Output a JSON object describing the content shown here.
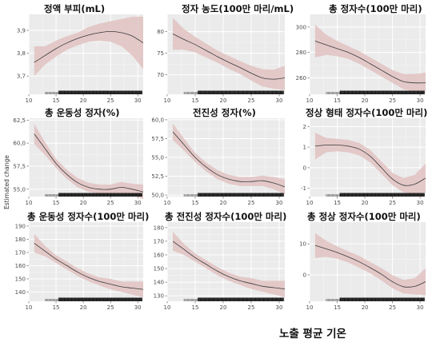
{
  "figure": {
    "xlabel": "노출 평균 기온",
    "ylabel": "Estimated change"
  },
  "chart_data": [
    {
      "type": "line",
      "title": "정액 부피(mL)",
      "xlim": [
        10,
        31
      ],
      "ylim": [
        3.62,
        3.97
      ],
      "xticks": [
        10,
        15,
        20,
        25,
        30
      ],
      "yticks": [
        3.7,
        3.8,
        3.9
      ],
      "ytick_labels": [
        "3,7",
        "3,8",
        "3,9"
      ],
      "series": [
        {
          "x": [
            11,
            13,
            15,
            17,
            19,
            21,
            23,
            25,
            27,
            29,
            31
          ],
          "y": [
            3.76,
            3.79,
            3.82,
            3.845,
            3.865,
            3.88,
            3.89,
            3.895,
            3.89,
            3.875,
            3.845
          ],
          "lower": [
            3.7,
            3.75,
            3.785,
            3.815,
            3.835,
            3.85,
            3.855,
            3.85,
            3.83,
            3.79,
            3.73
          ],
          "upper": [
            3.83,
            3.83,
            3.855,
            3.875,
            3.89,
            3.915,
            3.93,
            3.94,
            3.95,
            3.96,
            3.96
          ]
        }
      ]
    },
    {
      "type": "line",
      "title": "정자 농도(100만 마리/mL)",
      "xlim": [
        10,
        31
      ],
      "ylim": [
        65.5,
        84
      ],
      "xticks": [
        10,
        15,
        20,
        25,
        30
      ],
      "yticks": [
        70,
        75,
        80
      ],
      "ytick_labels": [
        "70",
        "75",
        "80"
      ],
      "series": [
        {
          "x": [
            11,
            13,
            15,
            17,
            19,
            21,
            23,
            25,
            27,
            29,
            31
          ],
          "y": [
            79.5,
            78.2,
            77.0,
            75.6,
            74.2,
            72.9,
            71.7,
            70.4,
            69.3,
            69.0,
            69.3
          ],
          "lower": [
            75.8,
            75.8,
            75.2,
            74.0,
            72.8,
            71.4,
            70.2,
            68.7,
            67.3,
            66.8,
            66.5
          ],
          "upper": [
            83.2,
            80.6,
            78.8,
            77.2,
            75.6,
            74.4,
            73.2,
            72.1,
            71.3,
            71.2,
            72.1
          ]
        }
      ]
    },
    {
      "type": "line",
      "title": "총 정자수(100만 마리)",
      "xlim": [
        10,
        31
      ],
      "ylim": [
        247,
        310
      ],
      "xticks": [
        10,
        15,
        20,
        25,
        30
      ],
      "yticks": [
        260,
        280,
        300
      ],
      "ytick_labels": [
        "260",
        "280",
        "300"
      ],
      "series": [
        {
          "x": [
            11,
            13,
            15,
            17,
            19,
            21,
            23,
            25,
            27,
            29,
            31
          ],
          "y": [
            289,
            286,
            283,
            280,
            276,
            271,
            266,
            261,
            257,
            256,
            256
          ],
          "lower": [
            276,
            278,
            277,
            275,
            271,
            266,
            261,
            256,
            251,
            249,
            249
          ],
          "upper": [
            302,
            294,
            289,
            285,
            281,
            276,
            271,
            266,
            263,
            263,
            264
          ]
        }
      ]
    },
    {
      "type": "line",
      "title": "총 운동성 정자(%)",
      "xlim": [
        10,
        31
      ],
      "ylim": [
        54.2,
        62.7
      ],
      "xticks": [
        10,
        15,
        20,
        25,
        30
      ],
      "yticks": [
        55.0,
        57.5,
        60.0,
        62.5
      ],
      "ytick_labels": [
        "55,0",
        "57,5",
        "60,0",
        "62,5"
      ],
      "series": [
        {
          "x": [
            11,
            13,
            15,
            17,
            19,
            21,
            23,
            25,
            27,
            29,
            31
          ],
          "y": [
            61.0,
            59.4,
            57.8,
            56.6,
            55.7,
            55.2,
            55.0,
            55.0,
            55.2,
            55.0,
            54.7
          ],
          "lower": [
            59.9,
            58.7,
            57.3,
            56.1,
            55.2,
            54.7,
            54.5,
            54.5,
            54.6,
            54.4,
            53.9
          ],
          "upper": [
            62.1,
            60.1,
            58.3,
            57.1,
            56.2,
            55.7,
            55.5,
            55.5,
            55.8,
            55.6,
            55.5
          ]
        }
      ]
    },
    {
      "type": "line",
      "title": "전진성 정자(%)",
      "xlim": [
        10,
        31
      ],
      "ylim": [
        49.8,
        60.2
      ],
      "xticks": [
        10,
        15,
        20,
        25,
        30
      ],
      "yticks": [
        50.0,
        52.5,
        55.0,
        57.5,
        60.0
      ],
      "ytick_labels": [
        "50,0",
        "52,5",
        "55,0",
        "57,5",
        "60,0"
      ],
      "series": [
        {
          "x": [
            11,
            13,
            15,
            17,
            19,
            21,
            23,
            25,
            27,
            29,
            31
          ],
          "y": [
            58.4,
            56.7,
            55.0,
            53.7,
            52.7,
            52.1,
            51.8,
            51.8,
            51.9,
            51.6,
            51.1
          ],
          "lower": [
            57.3,
            55.9,
            54.4,
            53.1,
            52.1,
            51.5,
            51.2,
            51.2,
            51.2,
            50.8,
            50.1
          ],
          "upper": [
            59.5,
            57.5,
            55.6,
            54.3,
            53.3,
            52.7,
            52.4,
            52.4,
            52.6,
            52.4,
            52.1
          ]
        }
      ]
    },
    {
      "type": "line",
      "title": "정상 형태 정자수(100만 마리)",
      "xlim": [
        10,
        31
      ],
      "ylim": [
        -1.4,
        2.4
      ],
      "xticks": [
        10,
        15,
        20,
        25,
        30
      ],
      "yticks": [
        -1,
        0,
        1,
        2
      ],
      "ytick_labels": [
        "-1",
        "0",
        "1",
        "2"
      ],
      "series": [
        {
          "x": [
            11,
            13,
            15,
            17,
            19,
            21,
            23,
            25,
            27,
            29,
            31
          ],
          "y": [
            1.05,
            1.1,
            1.1,
            1.05,
            0.9,
            0.55,
            0.0,
            -0.55,
            -0.85,
            -0.8,
            -0.5
          ],
          "lower": [
            0.4,
            0.75,
            0.8,
            0.75,
            0.6,
            0.25,
            -0.3,
            -0.85,
            -1.2,
            -1.25,
            -1.2
          ],
          "upper": [
            1.7,
            1.45,
            1.4,
            1.35,
            1.2,
            0.85,
            0.3,
            -0.25,
            -0.5,
            -0.35,
            0.2
          ]
        }
      ]
    },
    {
      "type": "line",
      "title": "총 운동성 정자수(100만 마리)",
      "xlim": [
        10,
        31
      ],
      "ylim": [
        133,
        193
      ],
      "xticks": [
        10,
        15,
        20,
        25,
        30
      ],
      "yticks": [
        140,
        150,
        160,
        170,
        180,
        190
      ],
      "ytick_labels": [
        "140",
        "150",
        "160",
        "170",
        "180",
        "190"
      ],
      "series": [
        {
          "x": [
            11,
            13,
            15,
            17,
            19,
            21,
            23,
            25,
            27,
            29,
            31
          ],
          "y": [
            177,
            171,
            165,
            160,
            155,
            151,
            148,
            146,
            144,
            143,
            142
          ],
          "lower": [
            170,
            167,
            162,
            157,
            152,
            148,
            145,
            142,
            140,
            138,
            136
          ],
          "upper": [
            184,
            175,
            168,
            163,
            158,
            154,
            151,
            150,
            148,
            148,
            148
          ]
        }
      ]
    },
    {
      "type": "line",
      "title": "총 전진성 정자수(100만 마리)",
      "xlim": [
        10,
        31
      ],
      "ylim": [
        126,
        184
      ],
      "xticks": [
        10,
        15,
        20,
        25,
        30
      ],
      "yticks": [
        130,
        140,
        150,
        160,
        170,
        180
      ],
      "ytick_labels": [
        "130",
        "140",
        "150",
        "160",
        "170",
        "180"
      ],
      "series": [
        {
          "x": [
            11,
            13,
            15,
            17,
            19,
            21,
            23,
            25,
            27,
            29,
            31
          ],
          "y": [
            170,
            164,
            158,
            153,
            148,
            144,
            141,
            139,
            137,
            136,
            135
          ],
          "lower": [
            163,
            160,
            155,
            150,
            145,
            141,
            138,
            135,
            133,
            131,
            129
          ],
          "upper": [
            177,
            168,
            161,
            156,
            151,
            147,
            144,
            143,
            141,
            141,
            141
          ]
        }
      ]
    },
    {
      "type": "line",
      "title": "총 정상 정자수(100만 마리)",
      "xlim": [
        10,
        31
      ],
      "ylim": [
        -8.5,
        17
      ],
      "xticks": [
        10,
        15,
        20,
        25,
        30
      ],
      "yticks": [
        0,
        10
      ],
      "ytick_labels": [
        "0",
        "10"
      ],
      "series": [
        {
          "x": [
            11,
            13,
            15,
            17,
            19,
            21,
            23,
            25,
            27,
            29,
            31
          ],
          "y": [
            9.5,
            8.4,
            7.2,
            5.8,
            4.2,
            2.3,
            0.2,
            -2.2,
            -3.8,
            -3.7,
            -2.2
          ],
          "lower": [
            5.5,
            5.8,
            5.2,
            4.0,
            2.3,
            0.5,
            -1.8,
            -4.3,
            -6.0,
            -6.3,
            -6.5
          ],
          "upper": [
            13.5,
            11.0,
            9.2,
            7.6,
            6.1,
            4.1,
            2.2,
            -0.1,
            -1.6,
            -1.1,
            2.1
          ]
        }
      ]
    }
  ]
}
